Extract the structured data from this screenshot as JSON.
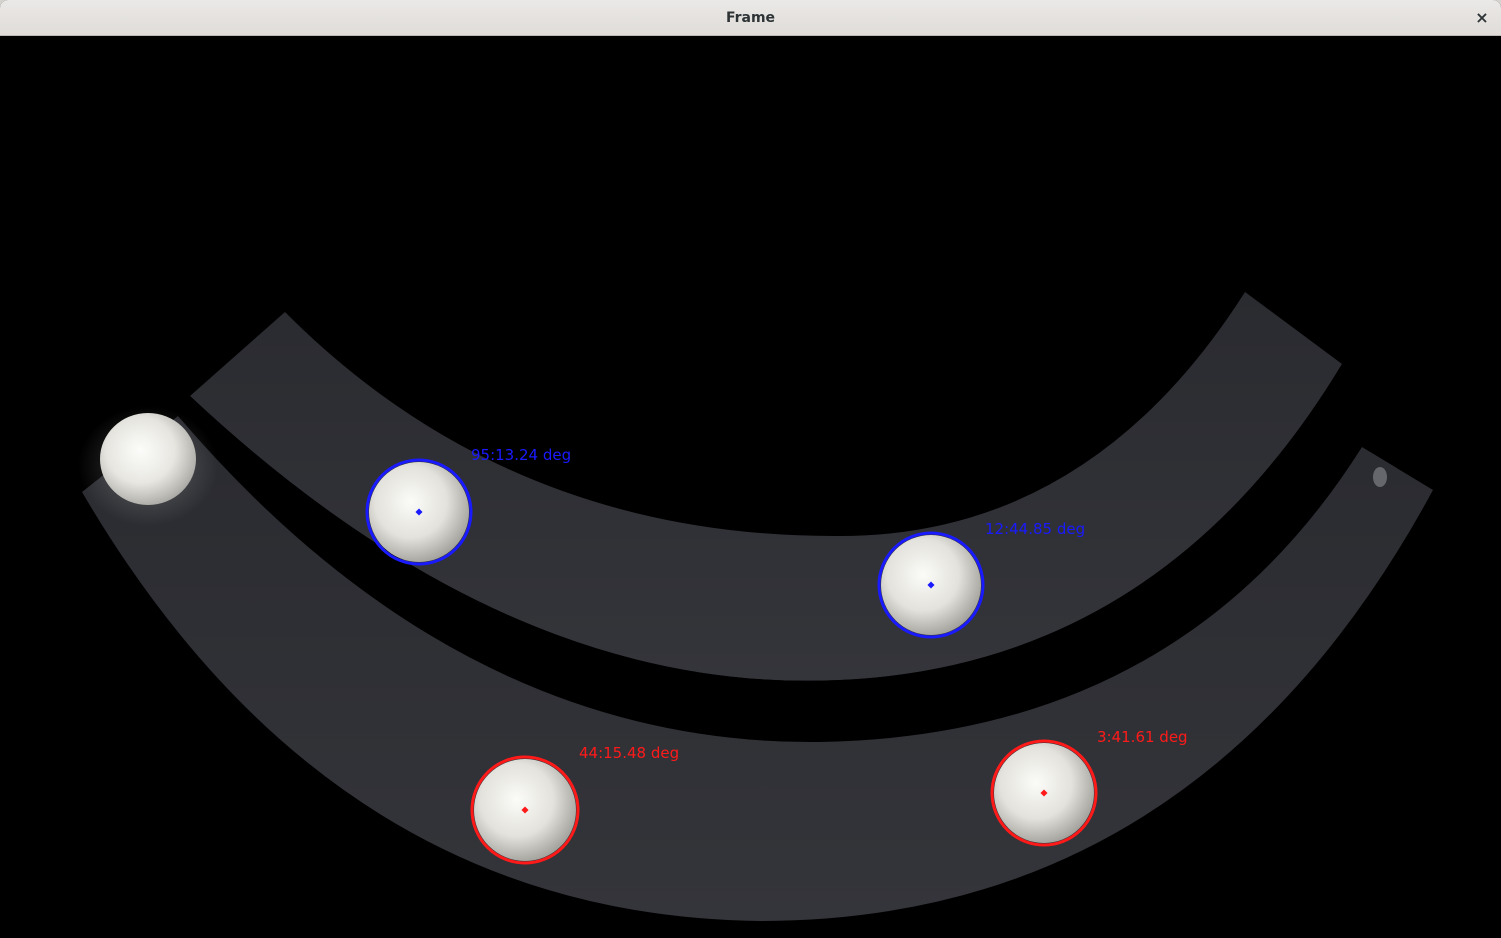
{
  "window": {
    "title": "Frame",
    "close_glyph": "×"
  },
  "detections": [
    {
      "label": "95:13.24 deg",
      "color": "#1a1aff",
      "track": "upper"
    },
    {
      "label": "12:44.85 deg",
      "color": "#1a1aff",
      "track": "upper"
    },
    {
      "label": "44:15.48 deg",
      "color": "#ff1a1a",
      "track": "lower"
    },
    {
      "label": "3:41.61 deg",
      "color": "#ff1a1a",
      "track": "lower"
    }
  ]
}
